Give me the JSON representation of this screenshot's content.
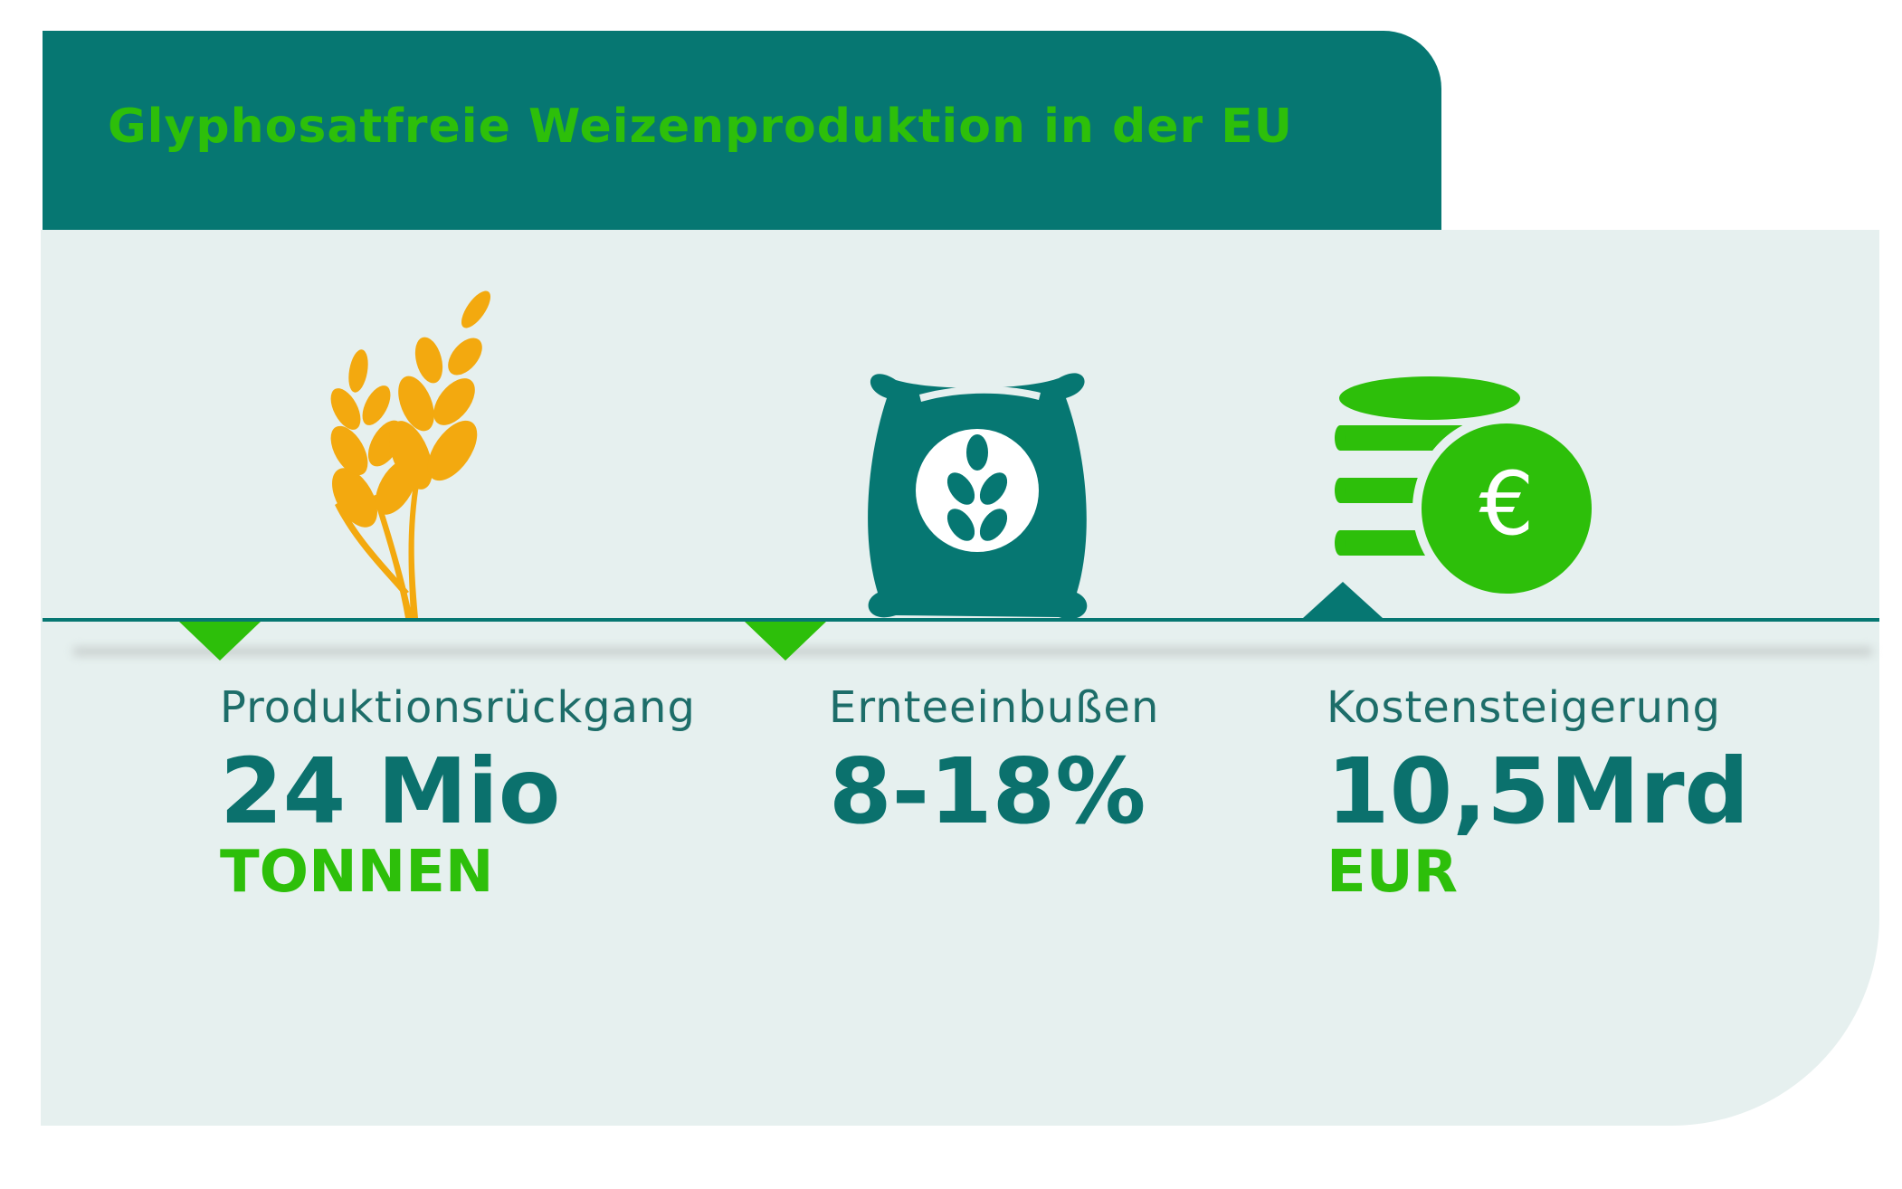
{
  "header": {
    "title": "Glyphosatfreie Weizenproduktion in der EU"
  },
  "stats": [
    {
      "icon": "wheat-icon",
      "label": "Produktionsrückgang",
      "value": "24 Mio",
      "unit": "TONNEN"
    },
    {
      "icon": "grain-sack-icon",
      "label": "Ernteeinbußen",
      "value": "8-18%",
      "unit": ""
    },
    {
      "icon": "euro-coins-icon",
      "label": "Kostensteigerung",
      "value": "10,5Mrd",
      "unit": "EUR",
      "currency_symbol": "€"
    }
  ],
  "colors": {
    "teal": "#067772",
    "green": "#2dbf0a",
    "wheat": "#f3a90f",
    "panel": "#e6f0ef"
  }
}
